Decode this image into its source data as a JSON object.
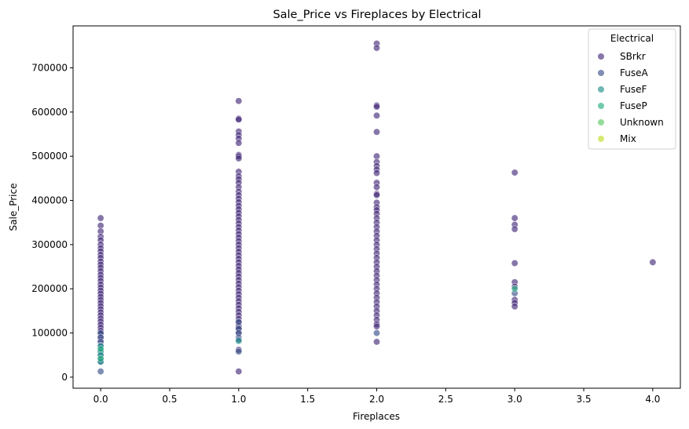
{
  "chart_data": {
    "type": "scatter",
    "title": "Sale_Price vs Fireplaces by Electrical",
    "xlabel": "Fireplaces",
    "ylabel": "Sale_Price",
    "xlim": [
      -0.2,
      4.2
    ],
    "ylim": [
      -25000,
      795000
    ],
    "x_ticks": [
      0.0,
      0.5,
      1.0,
      1.5,
      2.0,
      2.5,
      3.0,
      3.5,
      4.0
    ],
    "x_tick_labels": [
      "0.0",
      "0.5",
      "1.0",
      "1.5",
      "2.0",
      "2.5",
      "3.0",
      "3.5",
      "4.0"
    ],
    "y_ticks": [
      0,
      100000,
      200000,
      300000,
      400000,
      500000,
      600000,
      700000
    ],
    "y_tick_labels": [
      "0",
      "100000",
      "200000",
      "300000",
      "400000",
      "500000",
      "600000",
      "700000"
    ],
    "grid": false,
    "legend": {
      "title": "Electrical",
      "placement": "top-right"
    },
    "series": [
      {
        "name": "SBrkr",
        "color": "#472d7b",
        "points": [
          [
            0,
            360000
          ],
          [
            0,
            343000
          ],
          [
            0,
            330000
          ],
          [
            0,
            318000
          ],
          [
            0,
            310000
          ],
          [
            0,
            300000
          ],
          [
            0,
            292000
          ],
          [
            0,
            285000
          ],
          [
            0,
            277000
          ],
          [
            0,
            270000
          ],
          [
            0,
            262000
          ],
          [
            0,
            255000
          ],
          [
            0,
            248000
          ],
          [
            0,
            240000
          ],
          [
            0,
            232000
          ],
          [
            0,
            225000
          ],
          [
            0,
            218000
          ],
          [
            0,
            210000
          ],
          [
            0,
            203000
          ],
          [
            0,
            196000
          ],
          [
            0,
            189000
          ],
          [
            0,
            182000
          ],
          [
            0,
            175000
          ],
          [
            0,
            168000
          ],
          [
            0,
            161000
          ],
          [
            0,
            154000
          ],
          [
            0,
            147000
          ],
          [
            0,
            140000
          ],
          [
            0,
            133000
          ],
          [
            0,
            126000
          ],
          [
            0,
            119000
          ],
          [
            0,
            112000
          ],
          [
            0,
            105000
          ],
          [
            0,
            98000
          ],
          [
            0,
            91000
          ],
          [
            0,
            84000
          ],
          [
            0,
            77000
          ],
          [
            0,
            70000
          ],
          [
            1,
            625000
          ],
          [
            1,
            585000
          ],
          [
            1,
            583000
          ],
          [
            1,
            556000
          ],
          [
            1,
            548000
          ],
          [
            1,
            540000
          ],
          [
            1,
            530000
          ],
          [
            1,
            503000
          ],
          [
            1,
            500000
          ],
          [
            1,
            495000
          ],
          [
            1,
            465000
          ],
          [
            1,
            455000
          ],
          [
            1,
            448000
          ],
          [
            1,
            440000
          ],
          [
            1,
            430000
          ],
          [
            1,
            420000
          ],
          [
            1,
            412000
          ],
          [
            1,
            404000
          ],
          [
            1,
            396000
          ],
          [
            1,
            388000
          ],
          [
            1,
            380000
          ],
          [
            1,
            372000
          ],
          [
            1,
            364000
          ],
          [
            1,
            356000
          ],
          [
            1,
            348000
          ],
          [
            1,
            340000
          ],
          [
            1,
            332000
          ],
          [
            1,
            324000
          ],
          [
            1,
            316000
          ],
          [
            1,
            308000
          ],
          [
            1,
            300000
          ],
          [
            1,
            292000
          ],
          [
            1,
            284000
          ],
          [
            1,
            276000
          ],
          [
            1,
            268000
          ],
          [
            1,
            260000
          ],
          [
            1,
            252000
          ],
          [
            1,
            244000
          ],
          [
            1,
            236000
          ],
          [
            1,
            228000
          ],
          [
            1,
            220000
          ],
          [
            1,
            212000
          ],
          [
            1,
            204000
          ],
          [
            1,
            196000
          ],
          [
            1,
            188000
          ],
          [
            1,
            180000
          ],
          [
            1,
            172000
          ],
          [
            1,
            164000
          ],
          [
            1,
            156000
          ],
          [
            1,
            148000
          ],
          [
            1,
            140000
          ],
          [
            1,
            132000
          ],
          [
            1,
            124000
          ],
          [
            1,
            116000
          ],
          [
            1,
            108000
          ],
          [
            1,
            100000
          ],
          [
            1,
            62000
          ],
          [
            1,
            13000
          ],
          [
            2,
            755000
          ],
          [
            2,
            745000
          ],
          [
            2,
            615000
          ],
          [
            2,
            612000
          ],
          [
            2,
            592000
          ],
          [
            2,
            555000
          ],
          [
            2,
            500000
          ],
          [
            2,
            487000
          ],
          [
            2,
            478000
          ],
          [
            2,
            470000
          ],
          [
            2,
            462000
          ],
          [
            2,
            440000
          ],
          [
            2,
            430000
          ],
          [
            2,
            415000
          ],
          [
            2,
            412000
          ],
          [
            2,
            395000
          ],
          [
            2,
            385000
          ],
          [
            2,
            378000
          ],
          [
            2,
            370000
          ],
          [
            2,
            360000
          ],
          [
            2,
            350000
          ],
          [
            2,
            340000
          ],
          [
            2,
            330000
          ],
          [
            2,
            320000
          ],
          [
            2,
            310000
          ],
          [
            2,
            300000
          ],
          [
            2,
            290000
          ],
          [
            2,
            280000
          ],
          [
            2,
            270000
          ],
          [
            2,
            260000
          ],
          [
            2,
            250000
          ],
          [
            2,
            240000
          ],
          [
            2,
            230000
          ],
          [
            2,
            220000
          ],
          [
            2,
            210000
          ],
          [
            2,
            200000
          ],
          [
            2,
            190000
          ],
          [
            2,
            180000
          ],
          [
            2,
            170000
          ],
          [
            2,
            160000
          ],
          [
            2,
            150000
          ],
          [
            2,
            140000
          ],
          [
            2,
            130000
          ],
          [
            2,
            120000
          ],
          [
            2,
            115000
          ],
          [
            2,
            80000
          ],
          [
            3,
            463000
          ],
          [
            3,
            360000
          ],
          [
            3,
            345000
          ],
          [
            3,
            335000
          ],
          [
            3,
            258000
          ],
          [
            3,
            215000
          ],
          [
            3,
            205000
          ],
          [
            3,
            175000
          ],
          [
            3,
            168000
          ],
          [
            3,
            160000
          ],
          [
            4,
            260000
          ]
        ]
      },
      {
        "name": "FuseA",
        "color": "#3b528b",
        "points": [
          [
            0,
            100000
          ],
          [
            0,
            90000
          ],
          [
            0,
            80000
          ],
          [
            0,
            72000
          ],
          [
            0,
            62000
          ],
          [
            0,
            55000
          ],
          [
            0,
            48000
          ],
          [
            0,
            40000
          ],
          [
            0,
            35000
          ],
          [
            0,
            13000
          ],
          [
            1,
            125000
          ],
          [
            1,
            110000
          ],
          [
            1,
            100000
          ],
          [
            1,
            90000
          ],
          [
            1,
            85000
          ],
          [
            1,
            58000
          ],
          [
            2,
            100000
          ],
          [
            3,
            190000
          ]
        ]
      },
      {
        "name": "FuseF",
        "color": "#21918c",
        "points": [
          [
            0,
            70000
          ],
          [
            0,
            58000
          ],
          [
            0,
            50000
          ],
          [
            0,
            35000
          ],
          [
            1,
            82000
          ]
        ]
      },
      {
        "name": "FuseP",
        "color": "#27ad81",
        "points": [
          [
            0,
            64000
          ],
          [
            0,
            42000
          ],
          [
            3,
            200000
          ]
        ]
      },
      {
        "name": "Unknown",
        "color": "#5ec962",
        "points": []
      },
      {
        "name": "Mix",
        "color": "#bddf26",
        "points": []
      }
    ]
  }
}
